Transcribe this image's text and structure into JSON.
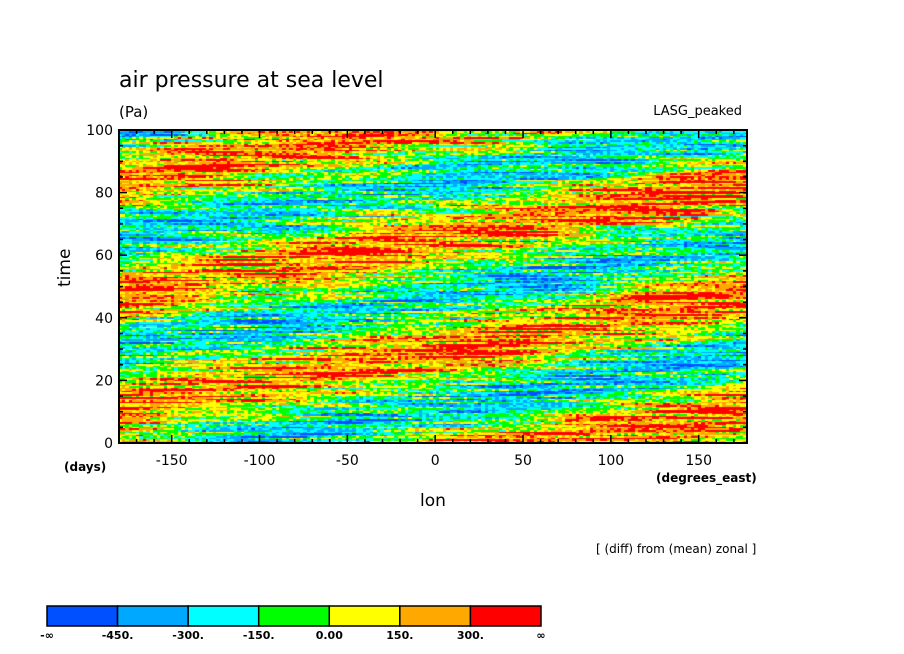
{
  "chart_data": {
    "type": "heatmap",
    "title": "air pressure at sea level",
    "units": "(Pa)",
    "dataset": "LASG_peaked",
    "xlabel": "lon",
    "x_units": "(degrees_east)",
    "ylabel": "time",
    "y_units": "(days)",
    "note": "[ (diff) from (mean) zonal ]",
    "xlim": [
      -180,
      177.5
    ],
    "ylim": [
      0,
      100
    ],
    "x_ticks": [
      -150,
      -100,
      -50,
      0,
      50,
      100,
      150
    ],
    "x_tick_labels": [
      "-150",
      "-100",
      "-50",
      "0",
      "50",
      "100",
      "150"
    ],
    "y_ticks": [
      0,
      20,
      40,
      60,
      80,
      100
    ],
    "y_tick_labels": [
      "0",
      "20",
      "40",
      "60",
      "80",
      "100"
    ],
    "levels": [
      -450,
      -300,
      -150,
      0,
      150,
      300
    ],
    "colorbar_labels": [
      "-∞",
      "-450.",
      "-300.",
      "-150.",
      "0.00",
      "150.",
      "300.",
      "∞"
    ],
    "colors": [
      "#0050ff",
      "#00a8ff",
      "#00ffff",
      "#00ff00",
      "#ffff00",
      "#ffa800",
      "#ff0000"
    ],
    "eastward_phase_speed_deg_per_day": 10
  }
}
